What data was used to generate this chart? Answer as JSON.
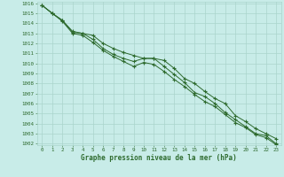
{
  "xlabel": "Graphe pression niveau de la mer (hPa)",
  "x": [
    0,
    1,
    2,
    3,
    4,
    5,
    6,
    7,
    8,
    9,
    10,
    11,
    12,
    13,
    14,
    15,
    16,
    17,
    18,
    19,
    20,
    21,
    22,
    23
  ],
  "line1": [
    1015.8,
    1015.0,
    1014.3,
    1013.2,
    1013.0,
    1012.8,
    1012.0,
    1011.5,
    1011.1,
    1010.8,
    1010.5,
    1010.5,
    1010.3,
    1009.5,
    1008.5,
    1008.0,
    1007.2,
    1006.5,
    1006.0,
    1004.8,
    1004.2,
    1003.5,
    1003.0,
    1002.5
  ],
  "line2": [
    1015.8,
    1015.0,
    1014.3,
    1013.1,
    1013.0,
    1012.4,
    1011.5,
    1010.9,
    1010.5,
    1010.2,
    1010.5,
    1010.5,
    1009.7,
    1008.9,
    1008.1,
    1007.1,
    1006.7,
    1006.0,
    1005.1,
    1004.4,
    1003.7,
    1003.0,
    1002.8,
    1002.0
  ],
  "line3": [
    1015.8,
    1015.0,
    1014.2,
    1013.0,
    1012.8,
    1012.1,
    1011.3,
    1010.7,
    1010.2,
    1009.7,
    1010.1,
    1009.9,
    1009.2,
    1008.4,
    1007.7,
    1006.9,
    1006.2,
    1005.7,
    1004.9,
    1004.1,
    1003.6,
    1002.9,
    1002.6,
    1001.9
  ],
  "ylim_min": 1002,
  "ylim_max": 1016,
  "yticks": [
    1002,
    1003,
    1004,
    1005,
    1006,
    1007,
    1008,
    1009,
    1010,
    1011,
    1012,
    1013,
    1014,
    1015,
    1016
  ],
  "line_color": "#2d6a2d",
  "bg_color": "#c8ece8",
  "grid_color": "#aad4cc",
  "label_color": "#2d6a2d",
  "marker": "+",
  "linewidth": 0.7,
  "markersize": 3,
  "xlabel_fontsize": 5.5,
  "tick_fontsize": 4.2
}
